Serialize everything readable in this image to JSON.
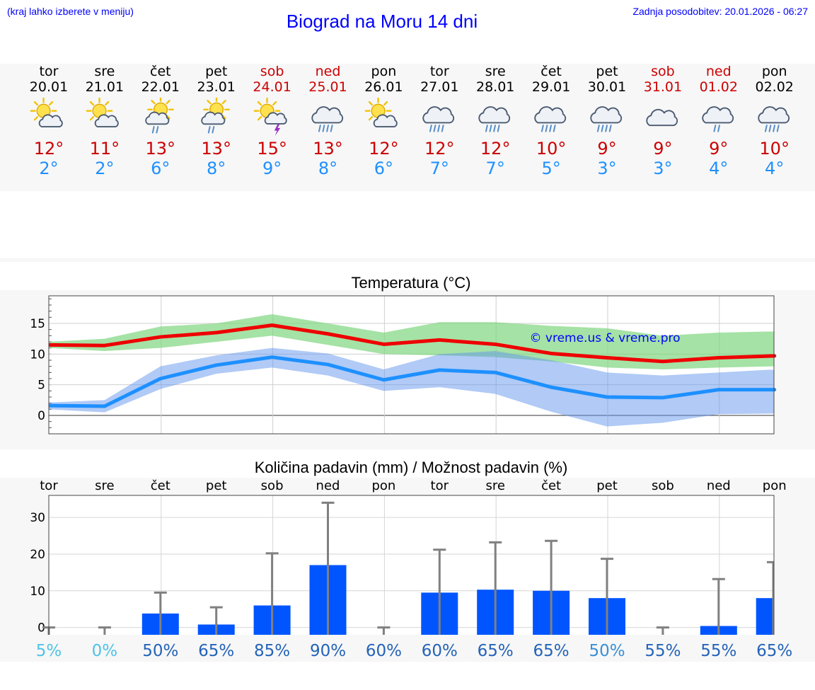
{
  "header": {
    "hint": "(kraj lahko izberete v meniju)",
    "title": "Biograd na Moru 14 dni",
    "updated": "Zadnja posodobitev: 20.01.2026 - 06:27"
  },
  "days": [
    {
      "name": "tor",
      "date": "20.01",
      "icon": "sun-cloud-icon",
      "max": "12°",
      "min": "2°",
      "weekend": false
    },
    {
      "name": "sre",
      "date": "21.01",
      "icon": "sun-cloud-icon",
      "max": "11°",
      "min": "2°",
      "weekend": false
    },
    {
      "name": "čet",
      "date": "22.01",
      "icon": "sun-rain-icon",
      "max": "13°",
      "min": "6°",
      "weekend": false
    },
    {
      "name": "pet",
      "date": "23.01",
      "icon": "sun-rain-icon",
      "max": "13°",
      "min": "8°",
      "weekend": false
    },
    {
      "name": "sob",
      "date": "24.01",
      "icon": "sun-storm-icon",
      "max": "15°",
      "min": "9°",
      "weekend": true
    },
    {
      "name": "ned",
      "date": "25.01",
      "icon": "heavy-rain-icon",
      "max": "13°",
      "min": "8°",
      "weekend": true
    },
    {
      "name": "pon",
      "date": "26.01",
      "icon": "sun-cloud-icon",
      "max": "12°",
      "min": "6°",
      "weekend": false
    },
    {
      "name": "tor",
      "date": "27.01",
      "icon": "heavy-rain-icon",
      "max": "12°",
      "min": "7°",
      "weekend": false
    },
    {
      "name": "sre",
      "date": "28.01",
      "icon": "heavy-rain-icon",
      "max": "12°",
      "min": "7°",
      "weekend": false
    },
    {
      "name": "čet",
      "date": "29.01",
      "icon": "heavy-rain-icon",
      "max": "10°",
      "min": "5°",
      "weekend": false
    },
    {
      "name": "pet",
      "date": "30.01",
      "icon": "heavy-rain-icon",
      "max": "9°",
      "min": "3°",
      "weekend": false
    },
    {
      "name": "sob",
      "date": "31.01",
      "icon": "cloud-icon",
      "max": "9°",
      "min": "3°",
      "weekend": true
    },
    {
      "name": "ned",
      "date": "01.02",
      "icon": "light-rain-icon",
      "max": "9°",
      "min": "4°",
      "weekend": true
    },
    {
      "name": "pon",
      "date": "02.02",
      "icon": "heavy-rain-icon",
      "max": "10°",
      "min": "4°",
      "weekend": false
    }
  ],
  "colors": {
    "max": "#ee0000",
    "min": "#1e90ff",
    "maxBand": "#7fd67f",
    "minBand": "#6495ed",
    "bar": "#0055ff",
    "whisker": "#808080"
  },
  "chart_data": [
    {
      "type": "line",
      "title": "Temperatura (°C)",
      "watermark": "© vreme.us & vreme.pro",
      "ylim": [
        -3,
        19.5
      ],
      "yticks": [
        "0",
        "5",
        "10",
        "15"
      ],
      "x": [
        0,
        1,
        2,
        3,
        4,
        5,
        6,
        7,
        8,
        9,
        10,
        11,
        12,
        13
      ],
      "series": [
        {
          "name": "max",
          "values": [
            11.5,
            11.4,
            12.8,
            13.5,
            14.7,
            13.3,
            11.6,
            12.3,
            11.6,
            10.1,
            9.4,
            8.8,
            9.4,
            9.7
          ],
          "band_low": [
            11.0,
            10.5,
            11.0,
            12.0,
            13.0,
            11.5,
            10.0,
            9.8,
            9.5,
            8.8,
            7.8,
            7.5,
            7.8,
            8.0
          ],
          "band_high": [
            12.0,
            12.5,
            14.5,
            15.0,
            16.5,
            15.0,
            13.5,
            15.2,
            15.2,
            14.6,
            14.2,
            13.0,
            13.5,
            13.7
          ]
        },
        {
          "name": "min",
          "values": [
            1.6,
            1.5,
            6.0,
            8.2,
            9.5,
            8.3,
            5.8,
            7.4,
            7.0,
            4.6,
            3.0,
            2.9,
            4.2,
            4.2
          ],
          "band_low": [
            1.0,
            0.5,
            4.3,
            6.8,
            7.8,
            6.5,
            4.0,
            4.6,
            3.5,
            0.6,
            -1.8,
            -1.2,
            0.2,
            0.3
          ],
          "band_high": [
            2.1,
            2.5,
            8.0,
            9.8,
            11.0,
            10.1,
            7.5,
            10.0,
            10.5,
            9.0,
            7.0,
            6.5,
            7.0,
            7.5
          ]
        }
      ]
    },
    {
      "type": "bar",
      "title": "Količina padavin (mm) / Možnost padavin (%)",
      "ylim": [
        -2,
        36
      ],
      "yticks": [
        "0",
        "10",
        "20",
        "30"
      ],
      "categories": [
        "tor",
        "sre",
        "čet",
        "pet",
        "sob",
        "ned",
        "pon",
        "tor",
        "sre",
        "čet",
        "pet",
        "sob",
        "ned",
        "pon"
      ],
      "values": [
        0,
        0,
        3.8,
        0.8,
        6.0,
        17.0,
        0,
        9.5,
        10.3,
        10.0,
        8.0,
        0,
        0.4,
        8.0
      ],
      "whisker_high": [
        0,
        0,
        9.5,
        5.5,
        20.2,
        34.0,
        0,
        21.2,
        23.2,
        23.6,
        18.7,
        0,
        13.2,
        17.8
      ],
      "probability": [
        "5%",
        "0%",
        "50%",
        "65%",
        "85%",
        "90%",
        "60%",
        "60%",
        "65%",
        "65%",
        "50%",
        "55%",
        "55%",
        "65%"
      ],
      "probability_values": [
        5,
        0,
        50,
        65,
        85,
        90,
        60,
        60,
        65,
        65,
        50,
        55,
        55,
        65
      ]
    }
  ]
}
